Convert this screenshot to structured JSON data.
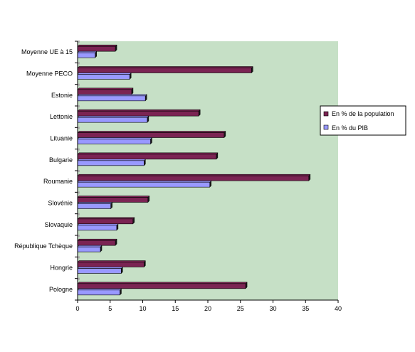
{
  "chart_data": {
    "type": "bar",
    "orientation": "horizontal",
    "categories": [
      "Moyenne UE à 15",
      "Moyenne PECO",
      "Estonie",
      "Lettonie",
      "Lituanie",
      "Bulgarie",
      "Roumanie",
      "Slovénie",
      "Slovaquie",
      "République Tchèque",
      "Hongrie",
      "Pologne"
    ],
    "series": [
      {
        "name": "En % de la population",
        "values": [
          5.8,
          26.7,
          8.3,
          18.6,
          22.5,
          21.3,
          35.5,
          10.8,
          8.5,
          5.8,
          10.2,
          25.8
        ],
        "color": "#7b2453"
      },
      {
        "name": "En % du PIB",
        "values": [
          2.7,
          8.0,
          10.4,
          10.7,
          11.2,
          10.2,
          20.3,
          5.1,
          6.0,
          3.5,
          6.7,
          6.5
        ],
        "color": "#9999ff"
      }
    ],
    "xlim": [
      0,
      40
    ],
    "xticks": [
      0,
      5,
      10,
      15,
      20,
      25,
      30,
      35,
      40
    ],
    "grid": false,
    "legend_position": "right",
    "plot_background": "#c6e0c6"
  }
}
